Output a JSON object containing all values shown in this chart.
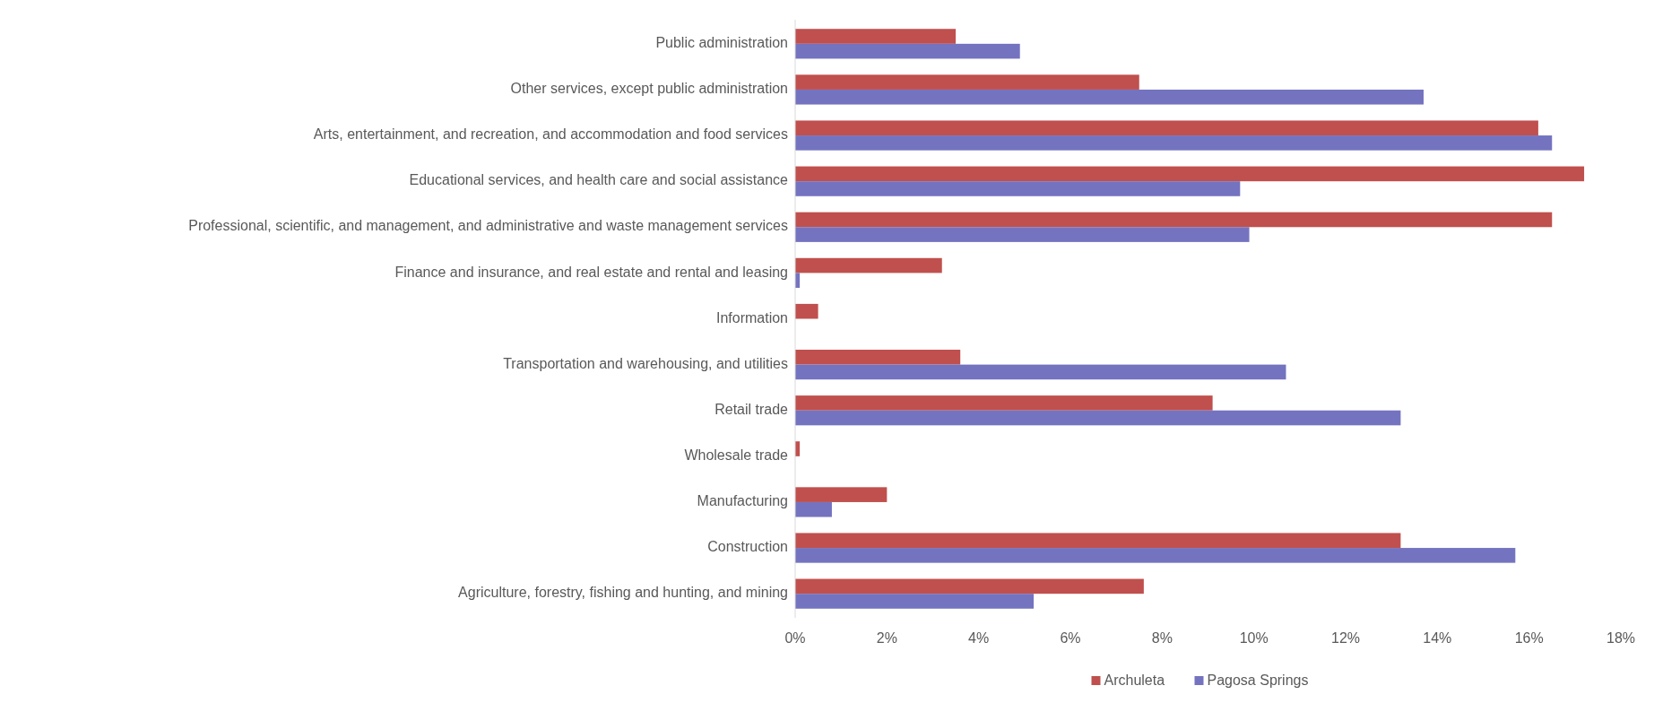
{
  "chart_data": {
    "type": "bar",
    "orientation": "horizontal",
    "categories": [
      "Public administration",
      "Other services, except public administration",
      "Arts, entertainment, and recreation, and accommodation and food services",
      "Educational services, and health care and social assistance",
      "Professional, scientific, and management, and administrative and waste management services",
      "Finance and insurance, and real estate and rental and leasing",
      "Information",
      "Transportation and warehousing, and utilities",
      "Retail trade",
      "Wholesale trade",
      "Manufacturing",
      "Construction",
      "Agriculture, forestry, fishing and hunting, and mining"
    ],
    "series": [
      {
        "name": "Archuleta",
        "color": "#c0504d",
        "values": [
          3.5,
          7.5,
          16.2,
          17.2,
          16.5,
          3.2,
          0.5,
          3.6,
          9.1,
          0.1,
          2.0,
          13.2,
          7.6
        ]
      },
      {
        "name": "Pagosa Springs",
        "color": "#7473c0",
        "values": [
          4.9,
          13.7,
          16.5,
          9.7,
          9.9,
          0.1,
          0,
          10.7,
          13.2,
          0,
          0.8,
          15.7,
          5.2
        ]
      }
    ],
    "xlim": [
      0,
      18
    ],
    "xticks": [
      {
        "value": 0,
        "label": "0%"
      },
      {
        "value": 2,
        "label": "2%"
      },
      {
        "value": 4,
        "label": "4%"
      },
      {
        "value": 6,
        "label": "6%"
      },
      {
        "value": 8,
        "label": "8%"
      },
      {
        "value": 10,
        "label": "10%"
      },
      {
        "value": 12,
        "label": "12%"
      },
      {
        "value": 14,
        "label": "14%"
      },
      {
        "value": 16,
        "label": "16%"
      },
      {
        "value": 18,
        "label": "18%"
      }
    ],
    "grid": false,
    "legend": "bottom"
  }
}
